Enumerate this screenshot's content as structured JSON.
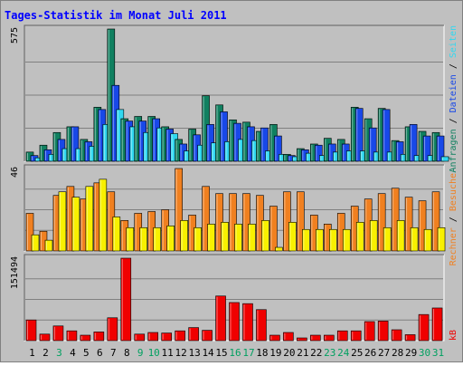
{
  "chart_data": {
    "type": "bar",
    "title": "Tages-Statistik im Monat Juli 2011",
    "x": [
      "1",
      "2",
      "3",
      "4",
      "5",
      "6",
      "7",
      "8",
      "9",
      "10",
      "11",
      "12",
      "13",
      "14",
      "15",
      "16",
      "17",
      "18",
      "19",
      "20",
      "21",
      "22",
      "23",
      "24",
      "25",
      "26",
      "27",
      "28",
      "29",
      "30",
      "31"
    ],
    "weekend_days": [
      "3",
      "9",
      "10",
      "16",
      "17",
      "23",
      "24",
      "30",
      "31"
    ],
    "panels": [
      {
        "name": "top",
        "ytick": "575",
        "ymax": 575,
        "series": [
          {
            "name": "Anfragen",
            "color": "#108060",
            "values": [
              40,
              70,
              125,
              150,
              95,
              235,
              575,
              185,
              195,
              195,
              150,
              95,
              140,
              285,
              245,
              180,
              170,
              130,
              160,
              30,
              55,
              75,
              100,
              95,
              235,
              185,
              230,
              90,
              150,
              130,
              125
            ]
          },
          {
            "name": "Dateien",
            "color": "#1848e8",
            "values": [
              25,
              50,
              95,
              150,
              85,
              225,
              330,
              175,
              175,
              185,
              140,
              75,
              115,
              160,
              215,
              165,
              150,
              145,
              110,
              25,
              50,
              70,
              75,
              75,
              230,
              145,
              225,
              85,
              160,
              110,
              110
            ]
          },
          {
            "name": "Seiten",
            "color": "#30d8f0",
            "values": [
              15,
              30,
              55,
              55,
              65,
              160,
              225,
              150,
              125,
              145,
              120,
              45,
              70,
              80,
              85,
              95,
              90,
              45,
              30,
              20,
              35,
              25,
              40,
              45,
              45,
              40,
              40,
              30,
              25,
              25,
              20
            ]
          }
        ],
        "legend_text": "Anfragen / Dateien / Seiten"
      },
      {
        "name": "middle",
        "ytick": "46",
        "ymax": 46,
        "series": [
          {
            "name": "Besuche",
            "color": "#f08020",
            "values": [
              21,
              11,
              31,
              36,
              29,
              38,
              33,
              17,
              21,
              22,
              23,
              46,
              20,
              36,
              32,
              32,
              32,
              31,
              25,
              33,
              33,
              20,
              15,
              21,
              25,
              29,
              32,
              35,
              30,
              28,
              33
            ]
          },
          {
            "name": "Rechner",
            "color": "#f8f000",
            "values": [
              9,
              6,
              33,
              30,
              36,
              40,
              19,
              13,
              13,
              13,
              14,
              17,
              13,
              15,
              16,
              15,
              15,
              17,
              2,
              16,
              12,
              12,
              12,
              12,
              16,
              17,
              13,
              17,
              13,
              12,
              13
            ]
          }
        ],
        "legend_text": "Rechner / Besuche"
      },
      {
        "name": "bottom",
        "ytick": "151494",
        "ymax": 151494,
        "series": [
          {
            "name": "kB",
            "color": "#f00000",
            "values": [
              38000,
              12000,
              27000,
              18000,
              10000,
              16000,
              42000,
              151494,
              12000,
              15000,
              14000,
              18000,
              24000,
              19000,
              82000,
              70000,
              68000,
              57000,
              10000,
              15000,
              5000,
              10000,
              10000,
              18000,
              18000,
              35000,
              36000,
              20000,
              11000,
              48000,
              60000
            ]
          }
        ],
        "legend_text": "kB"
      }
    ],
    "colors": {
      "background": "#c0c0c0",
      "grid": "#808080",
      "weekday_label": "#000000",
      "weekend_label": "#00a060",
      "title": "#0000ff"
    }
  }
}
